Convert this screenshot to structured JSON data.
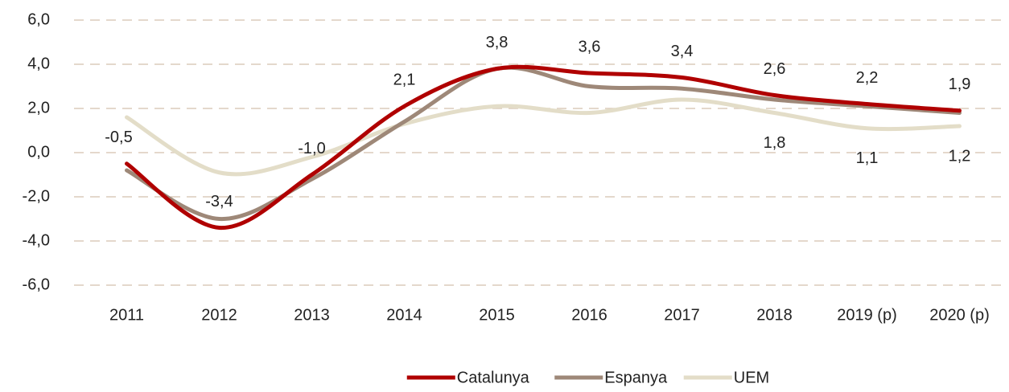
{
  "chart_data": {
    "type": "line",
    "categories": [
      "2011",
      "2012",
      "2013",
      "2014",
      "2015",
      "2016",
      "2017",
      "2018",
      "2019 (p)",
      "2020 (p)"
    ],
    "series": [
      {
        "name": "Catalunya",
        "color": "#b00000",
        "values": [
          -0.5,
          -3.4,
          -1.0,
          2.1,
          3.8,
          3.6,
          3.4,
          2.6,
          2.2,
          1.9
        ],
        "value_labels": [
          "-0,5",
          "-3,4",
          "-1,0",
          "2,1",
          "3,8",
          "3,6",
          "3,4",
          "2,6",
          "2,2",
          "1,9"
        ]
      },
      {
        "name": "Espanya",
        "color": "#9e8878",
        "values": [
          -0.8,
          -3.0,
          -1.2,
          1.4,
          3.8,
          3.0,
          2.9,
          2.4,
          2.1,
          1.8
        ]
      },
      {
        "name": "UEM",
        "color": "#e3ddc8",
        "values": [
          1.6,
          -0.9,
          -0.2,
          1.3,
          2.1,
          1.8,
          2.4,
          1.8,
          1.1,
          1.2
        ],
        "value_labels": [
          null,
          null,
          null,
          null,
          null,
          null,
          null,
          "1,8",
          "1,1",
          "1,2"
        ]
      }
    ],
    "ylim": [
      -6,
      6
    ],
    "yticks": [
      {
        "value": -6,
        "label": "-6,0"
      },
      {
        "value": -4,
        "label": "-4,0"
      },
      {
        "value": -2,
        "label": "-2,0"
      },
      {
        "value": 0,
        "label": "0,0"
      },
      {
        "value": 2,
        "label": "2,0"
      },
      {
        "value": 4,
        "label": "4,0"
      },
      {
        "value": 6,
        "label": "6,0"
      }
    ],
    "grid": true,
    "legend": "bottom"
  }
}
